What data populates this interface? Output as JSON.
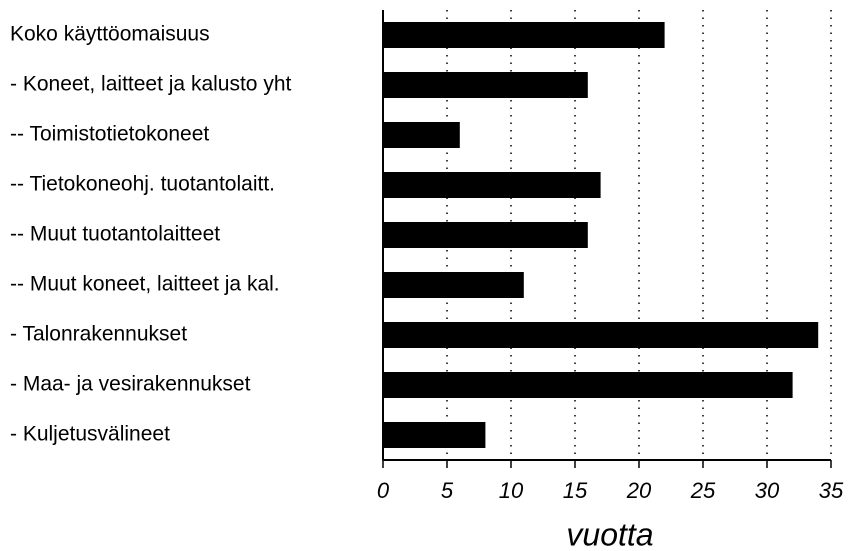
{
  "chart_data": {
    "type": "bar",
    "orientation": "horizontal",
    "categories": [
      "Koko käyttöomaisuus",
      "- Koneet, laitteet ja kalusto yht",
      "-- Toimistotietokoneet",
      "-- Tietokoneohj. tuotantolaitt.",
      "-- Muut tuotantolaitteet",
      "-- Muut koneet, laitteet ja kal.",
      "- Talonrakennukset",
      "- Maa- ja vesirakennukset",
      "- Kuljetusvälineet"
    ],
    "values": [
      22,
      16,
      6,
      17,
      16,
      11,
      34,
      32,
      8
    ],
    "color": "#000000",
    "xlabel": "vuotta",
    "xlim": [
      0,
      35
    ],
    "xticks": [
      0,
      5,
      10,
      15,
      20,
      25,
      30,
      35
    ],
    "grid": true
  }
}
